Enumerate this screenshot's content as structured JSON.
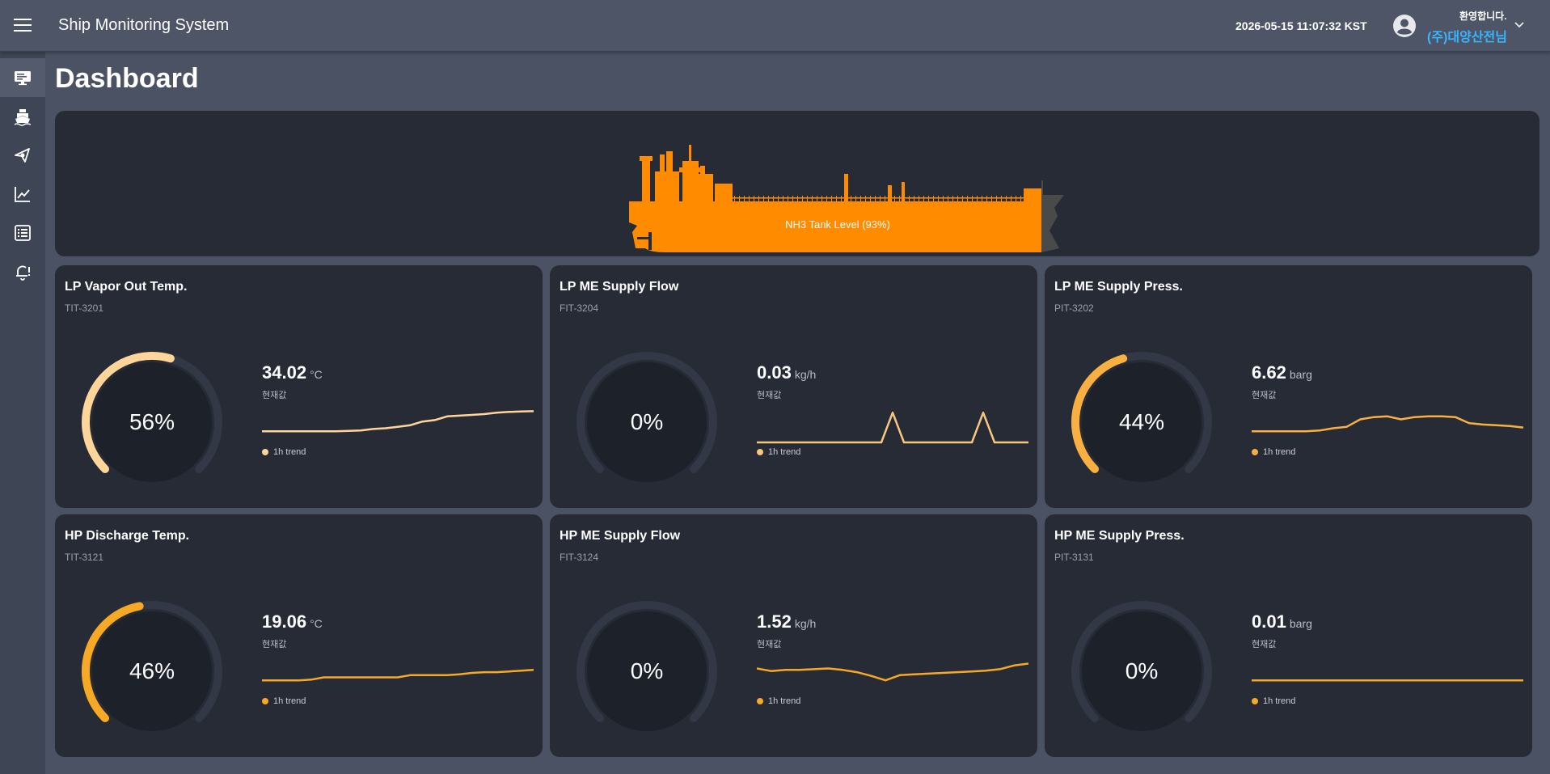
{
  "header": {
    "title": "Ship Monitoring System",
    "datetime": "2026-05-15 11:07:32 KST",
    "welcome": "환영합니다.",
    "user": "(주)대양산전님"
  },
  "sidebar": {
    "items": [
      {
        "icon": "monitor-icon",
        "active": true
      },
      {
        "icon": "ship-icon",
        "active": false
      },
      {
        "icon": "vessel-route-icon",
        "active": false
      },
      {
        "icon": "chart-line-icon",
        "active": false
      },
      {
        "icon": "list-icon",
        "active": false
      },
      {
        "icon": "alarm-bell-icon",
        "active": false
      }
    ]
  },
  "page": {
    "title": "Dashboard"
  },
  "ship": {
    "tank_label": "NH3 Tank Level (93%)",
    "tank_level": 0.93,
    "fill_color": "#ff8c00",
    "hull_color": "#4a4a4a"
  },
  "cards": [
    {
      "title": "LP Vapor Out Temp.",
      "tag": "TIT-3201",
      "gauge_text": "56%",
      "gauge_value": 56,
      "value": "34.02",
      "unit": "°C",
      "sublabel": "현재값",
      "legend": "1h trend",
      "color": "#ffd59a",
      "trend": [
        0.3,
        0.3,
        0.3,
        0.3,
        0.3,
        0.3,
        0.3,
        0.31,
        0.32,
        0.36,
        0.38,
        0.42,
        0.46,
        0.56,
        0.6,
        0.7,
        0.72,
        0.74,
        0.76,
        0.8,
        0.82,
        0.83,
        0.84
      ]
    },
    {
      "title": "LP ME Supply Flow",
      "tag": "FIT-3204",
      "gauge_text": "0%",
      "gauge_value": 0,
      "value": "0.03",
      "unit": "kg/h",
      "sublabel": "현재값",
      "legend": "1h trend",
      "color": "#f6c77d",
      "trend": [
        0,
        0,
        0,
        0,
        0,
        0,
        0,
        0,
        0,
        0,
        0,
        0,
        0.8,
        0,
        0,
        0,
        0,
        0,
        0,
        0,
        0.8,
        0,
        0,
        0,
        0
      ]
    },
    {
      "title": "LP ME Supply Press.",
      "tag": "PIT-3202",
      "gauge_text": "44%",
      "gauge_value": 44,
      "value": "6.62",
      "unit": "barg",
      "sublabel": "현재값",
      "legend": "1h trend",
      "color": "#f9b040",
      "trend": [
        0.3,
        0.3,
        0.3,
        0.3,
        0.3,
        0.32,
        0.38,
        0.42,
        0.62,
        0.68,
        0.7,
        0.62,
        0.68,
        0.7,
        0.7,
        0.68,
        0.52,
        0.48,
        0.46,
        0.44,
        0.4
      ]
    },
    {
      "title": "HP Discharge Temp.",
      "tag": "TIT-3121",
      "gauge_text": "46%",
      "gauge_value": 46,
      "value": "19.06",
      "unit": "°C",
      "sublabel": "현재값",
      "legend": "1h trend",
      "color": "#f7a824",
      "trend": [
        0.3,
        0.3,
        0.3,
        0.3,
        0.32,
        0.38,
        0.38,
        0.38,
        0.38,
        0.38,
        0.38,
        0.38,
        0.44,
        0.44,
        0.44,
        0.44,
        0.46,
        0.5,
        0.52,
        0.52,
        0.54,
        0.56,
        0.58
      ]
    },
    {
      "title": "HP ME Supply Flow",
      "tag": "FIT-3124",
      "gauge_text": "0%",
      "gauge_value": 0,
      "value": "1.52",
      "unit": "kg/h",
      "sublabel": "현재값",
      "legend": "1h trend",
      "color": "#f7a824",
      "trend": [
        0.62,
        0.55,
        0.58,
        0.58,
        0.6,
        0.62,
        0.58,
        0.52,
        0.42,
        0.3,
        0.44,
        0.46,
        0.48,
        0.5,
        0.52,
        0.54,
        0.56,
        0.6,
        0.7,
        0.75
      ]
    },
    {
      "title": "HP ME Supply Press.",
      "tag": "PIT-3131",
      "gauge_text": "0%",
      "gauge_value": 0,
      "value": "0.01",
      "unit": "barg",
      "sublabel": "현재값",
      "legend": "1h trend",
      "color": "#f7a824",
      "trend": [
        0.3,
        0.3,
        0.3,
        0.3,
        0.3,
        0.3,
        0.3,
        0.3,
        0.3,
        0.3,
        0.3,
        0.3
      ]
    }
  ],
  "theme": {
    "card_bg": "#262b36",
    "gauge_track": "#323846",
    "gauge_center": "#1d212a"
  }
}
